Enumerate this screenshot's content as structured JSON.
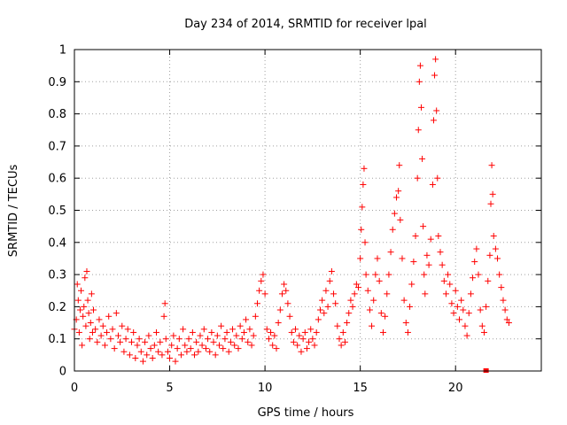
{
  "chart_data": {
    "type": "scatter",
    "title": "Day 234 of 2014, SRMTID for receiver lpal",
    "xlabel": "GPS time / hours",
    "ylabel": "SRMTID / TECUs",
    "xlim": [
      0,
      24.5
    ],
    "ylim": [
      0,
      1
    ],
    "x_ticks": [
      0,
      5,
      10,
      15,
      20
    ],
    "x_tick_labels": [
      "0",
      "5",
      "10",
      "15",
      "20"
    ],
    "y_ticks": [
      0,
      0.1,
      0.2,
      0.3,
      0.4,
      0.5,
      0.6,
      0.7,
      0.8,
      0.9,
      1
    ],
    "y_tick_labels": [
      "0",
      "0.1",
      "0.2",
      "0.3",
      "0.4",
      "0.5",
      "0.6",
      "0.7",
      "0.8",
      "0.9",
      "1"
    ],
    "grid": true,
    "marker": "+",
    "color": "#ff0000",
    "series": [
      {
        "name": "SRMTID",
        "points": [
          [
            0.0,
            0.13
          ],
          [
            0.1,
            0.16
          ],
          [
            0.15,
            0.27
          ],
          [
            0.2,
            0.22
          ],
          [
            0.25,
            0.12
          ],
          [
            0.3,
            0.19
          ],
          [
            0.35,
            0.25
          ],
          [
            0.4,
            0.08
          ],
          [
            0.45,
            0.17
          ],
          [
            0.5,
            0.2
          ],
          [
            0.55,
            0.29
          ],
          [
            0.6,
            0.14
          ],
          [
            0.65,
            0.31
          ],
          [
            0.7,
            0.22
          ],
          [
            0.75,
            0.18
          ],
          [
            0.8,
            0.1
          ],
          [
            0.85,
            0.15
          ],
          [
            0.9,
            0.24
          ],
          [
            0.95,
            0.12
          ],
          [
            1.0,
            0.19
          ],
          [
            1.1,
            0.13
          ],
          [
            1.2,
            0.09
          ],
          [
            1.3,
            0.16
          ],
          [
            1.4,
            0.11
          ],
          [
            1.5,
            0.14
          ],
          [
            1.6,
            0.08
          ],
          [
            1.7,
            0.12
          ],
          [
            1.8,
            0.17
          ],
          [
            1.9,
            0.1
          ],
          [
            2.0,
            0.13
          ],
          [
            2.1,
            0.07
          ],
          [
            2.2,
            0.18
          ],
          [
            2.3,
            0.11
          ],
          [
            2.4,
            0.09
          ],
          [
            2.5,
            0.14
          ],
          [
            2.6,
            0.06
          ],
          [
            2.7,
            0.1
          ],
          [
            2.8,
            0.13
          ],
          [
            2.9,
            0.05
          ],
          [
            3.0,
            0.09
          ],
          [
            3.1,
            0.12
          ],
          [
            3.2,
            0.04
          ],
          [
            3.3,
            0.08
          ],
          [
            3.4,
            0.1
          ],
          [
            3.5,
            0.06
          ],
          [
            3.6,
            0.03
          ],
          [
            3.7,
            0.09
          ],
          [
            3.8,
            0.05
          ],
          [
            3.9,
            0.11
          ],
          [
            4.0,
            0.07
          ],
          [
            4.1,
            0.04
          ],
          [
            4.2,
            0.08
          ],
          [
            4.3,
            0.12
          ],
          [
            4.4,
            0.06
          ],
          [
            4.5,
            0.09
          ],
          [
            4.6,
            0.05
          ],
          [
            4.7,
            0.17
          ],
          [
            4.75,
            0.21
          ],
          [
            4.8,
            0.1
          ],
          [
            4.9,
            0.06
          ],
          [
            5.0,
            0.04
          ],
          [
            5.1,
            0.08
          ],
          [
            5.2,
            0.11
          ],
          [
            5.3,
            0.03
          ],
          [
            5.4,
            0.07
          ],
          [
            5.5,
            0.1
          ],
          [
            5.6,
            0.05
          ],
          [
            5.7,
            0.13
          ],
          [
            5.8,
            0.08
          ],
          [
            5.9,
            0.06
          ],
          [
            6.0,
            0.1
          ],
          [
            6.1,
            0.07
          ],
          [
            6.2,
            0.12
          ],
          [
            6.3,
            0.05
          ],
          [
            6.4,
            0.09
          ],
          [
            6.5,
            0.06
          ],
          [
            6.6,
            0.11
          ],
          [
            6.7,
            0.08
          ],
          [
            6.8,
            0.13
          ],
          [
            6.9,
            0.07
          ],
          [
            7.0,
            0.1
          ],
          [
            7.1,
            0.06
          ],
          [
            7.2,
            0.12
          ],
          [
            7.3,
            0.09
          ],
          [
            7.4,
            0.05
          ],
          [
            7.5,
            0.11
          ],
          [
            7.6,
            0.08
          ],
          [
            7.7,
            0.14
          ],
          [
            7.8,
            0.07
          ],
          [
            7.9,
            0.1
          ],
          [
            8.0,
            0.12
          ],
          [
            8.1,
            0.06
          ],
          [
            8.2,
            0.09
          ],
          [
            8.3,
            0.13
          ],
          [
            8.4,
            0.08
          ],
          [
            8.5,
            0.11
          ],
          [
            8.6,
            0.07
          ],
          [
            8.7,
            0.14
          ],
          [
            8.8,
            0.1
          ],
          [
            8.9,
            0.12
          ],
          [
            9.0,
            0.16
          ],
          [
            9.1,
            0.09
          ],
          [
            9.2,
            0.13
          ],
          [
            9.3,
            0.08
          ],
          [
            9.4,
            0.11
          ],
          [
            9.5,
            0.17
          ],
          [
            9.6,
            0.21
          ],
          [
            9.7,
            0.25
          ],
          [
            9.8,
            0.28
          ],
          [
            9.9,
            0.3
          ],
          [
            10.0,
            0.24
          ],
          [
            10.1,
            0.13
          ],
          [
            10.2,
            0.1
          ],
          [
            10.3,
            0.12
          ],
          [
            10.4,
            0.08
          ],
          [
            10.5,
            0.11
          ],
          [
            10.6,
            0.07
          ],
          [
            10.7,
            0.15
          ],
          [
            10.8,
            0.19
          ],
          [
            10.9,
            0.24
          ],
          [
            11.0,
            0.27
          ],
          [
            11.1,
            0.25
          ],
          [
            11.2,
            0.21
          ],
          [
            11.3,
            0.17
          ],
          [
            11.4,
            0.12
          ],
          [
            11.5,
            0.09
          ],
          [
            11.6,
            0.13
          ],
          [
            11.7,
            0.08
          ],
          [
            11.8,
            0.11
          ],
          [
            11.9,
            0.06
          ],
          [
            12.0,
            0.1
          ],
          [
            12.1,
            0.12
          ],
          [
            12.2,
            0.07
          ],
          [
            12.3,
            0.09
          ],
          [
            12.4,
            0.13
          ],
          [
            12.5,
            0.1
          ],
          [
            12.6,
            0.08
          ],
          [
            12.7,
            0.12
          ],
          [
            12.8,
            0.16
          ],
          [
            12.9,
            0.19
          ],
          [
            13.0,
            0.22
          ],
          [
            13.1,
            0.18
          ],
          [
            13.2,
            0.25
          ],
          [
            13.3,
            0.2
          ],
          [
            13.4,
            0.28
          ],
          [
            13.5,
            0.31
          ],
          [
            13.6,
            0.24
          ],
          [
            13.7,
            0.21
          ],
          [
            13.8,
            0.14
          ],
          [
            13.9,
            0.1
          ],
          [
            14.0,
            0.08
          ],
          [
            14.1,
            0.12
          ],
          [
            14.2,
            0.09
          ],
          [
            14.3,
            0.15
          ],
          [
            14.4,
            0.18
          ],
          [
            14.5,
            0.22
          ],
          [
            14.6,
            0.2
          ],
          [
            14.7,
            0.24
          ],
          [
            14.8,
            0.27
          ],
          [
            14.9,
            0.26
          ],
          [
            15.0,
            0.35
          ],
          [
            15.05,
            0.44
          ],
          [
            15.1,
            0.51
          ],
          [
            15.15,
            0.58
          ],
          [
            15.2,
            0.63
          ],
          [
            15.25,
            0.4
          ],
          [
            15.3,
            0.3
          ],
          [
            15.4,
            0.25
          ],
          [
            15.5,
            0.19
          ],
          [
            15.6,
            0.14
          ],
          [
            15.7,
            0.22
          ],
          [
            15.8,
            0.3
          ],
          [
            15.9,
            0.35
          ],
          [
            16.0,
            0.28
          ],
          [
            16.1,
            0.18
          ],
          [
            16.2,
            0.12
          ],
          [
            16.3,
            0.17
          ],
          [
            16.4,
            0.24
          ],
          [
            16.5,
            0.3
          ],
          [
            16.6,
            0.37
          ],
          [
            16.7,
            0.44
          ],
          [
            16.8,
            0.49
          ],
          [
            16.9,
            0.54
          ],
          [
            17.0,
            0.56
          ],
          [
            17.05,
            0.64
          ],
          [
            17.1,
            0.47
          ],
          [
            17.2,
            0.35
          ],
          [
            17.3,
            0.22
          ],
          [
            17.4,
            0.15
          ],
          [
            17.5,
            0.12
          ],
          [
            17.6,
            0.2
          ],
          [
            17.7,
            0.27
          ],
          [
            17.8,
            0.34
          ],
          [
            17.9,
            0.42
          ],
          [
            18.0,
            0.6
          ],
          [
            18.05,
            0.75
          ],
          [
            18.1,
            0.9
          ],
          [
            18.15,
            0.95
          ],
          [
            18.2,
            0.82
          ],
          [
            18.25,
            0.66
          ],
          [
            18.3,
            0.45
          ],
          [
            18.35,
            0.3
          ],
          [
            18.4,
            0.24
          ],
          [
            18.5,
            0.36
          ],
          [
            18.6,
            0.33
          ],
          [
            18.7,
            0.41
          ],
          [
            18.8,
            0.58
          ],
          [
            18.85,
            0.78
          ],
          [
            18.9,
            0.92
          ],
          [
            18.95,
            0.97
          ],
          [
            19.0,
            0.81
          ],
          [
            19.05,
            0.6
          ],
          [
            19.1,
            0.42
          ],
          [
            19.2,
            0.37
          ],
          [
            19.3,
            0.33
          ],
          [
            19.4,
            0.28
          ],
          [
            19.5,
            0.24
          ],
          [
            19.6,
            0.3
          ],
          [
            19.7,
            0.27
          ],
          [
            19.8,
            0.21
          ],
          [
            19.9,
            0.18
          ],
          [
            20.0,
            0.25
          ],
          [
            20.1,
            0.2
          ],
          [
            20.2,
            0.16
          ],
          [
            20.3,
            0.22
          ],
          [
            20.4,
            0.19
          ],
          [
            20.5,
            0.14
          ],
          [
            20.6,
            0.11
          ],
          [
            20.7,
            0.18
          ],
          [
            20.8,
            0.24
          ],
          [
            20.9,
            0.29
          ],
          [
            21.0,
            0.34
          ],
          [
            21.1,
            0.38
          ],
          [
            21.2,
            0.3
          ],
          [
            21.3,
            0.19
          ],
          [
            21.4,
            0.14
          ],
          [
            21.5,
            0.12
          ],
          [
            21.6,
            0.2
          ],
          [
            21.7,
            0.28
          ],
          [
            21.8,
            0.36
          ],
          [
            21.85,
            0.52
          ],
          [
            21.9,
            0.64
          ],
          [
            21.95,
            0.55
          ],
          [
            22.0,
            0.42
          ],
          [
            22.1,
            0.38
          ],
          [
            22.2,
            0.35
          ],
          [
            22.3,
            0.3
          ],
          [
            22.4,
            0.26
          ],
          [
            22.5,
            0.22
          ],
          [
            22.6,
            0.19
          ],
          [
            22.7,
            0.16
          ],
          [
            22.8,
            0.15
          ]
        ]
      }
    ],
    "zero_markers": [
      [
        21.6,
        0.0
      ]
    ]
  }
}
